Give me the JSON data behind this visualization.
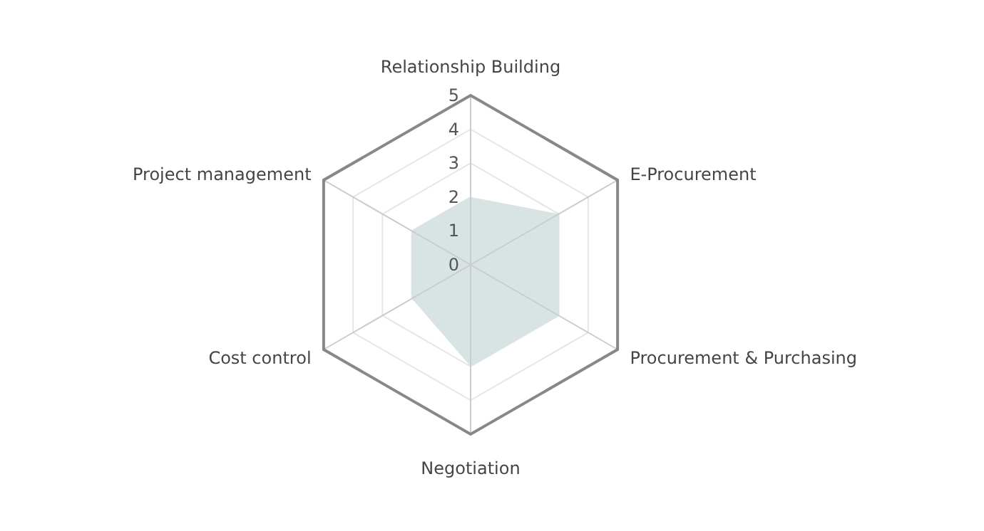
{
  "chart_data": {
    "type": "radar",
    "categories": [
      "Relationship Building",
      "E-Procurement",
      "Procurement & Purchasing",
      "Negotiation",
      "Cost control",
      "Project management"
    ],
    "series": [
      {
        "color": "#d4e1e0",
        "values": [
          2,
          3,
          3,
          3,
          2,
          2
        ]
      }
    ],
    "ylim": [
      0,
      5
    ],
    "yticks": [
      0,
      1,
      2,
      3,
      4,
      5
    ],
    "grid": true
  }
}
